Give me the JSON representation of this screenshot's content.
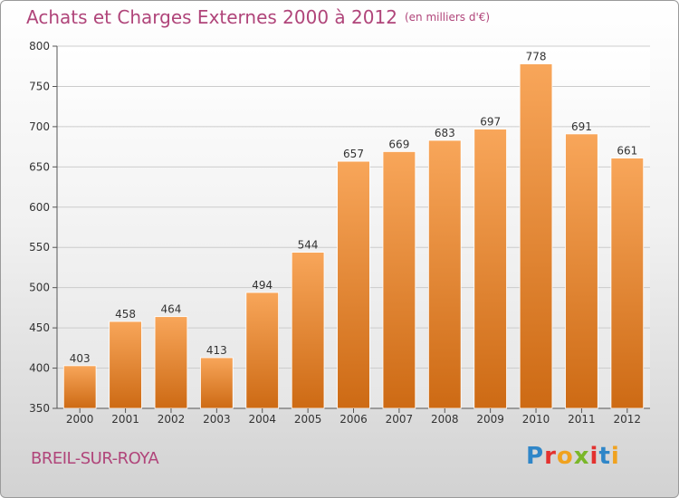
{
  "header": {
    "title": "Achats et Charges Externes 2000 à 2012",
    "unit": "(en milliers d'€)"
  },
  "footer": {
    "commune": "BREIL-SUR-ROYA",
    "logo": [
      "P",
      "r",
      "o",
      "x",
      "i",
      "t",
      "i"
    ]
  },
  "colors": {
    "bar_top": "#f8a65a",
    "bar_bottom": "#cd6a14",
    "title": "#b0457a",
    "grid": "#cccccc"
  },
  "chart_data": {
    "type": "bar",
    "categories": [
      "2000",
      "2001",
      "2002",
      "2003",
      "2004",
      "2005",
      "2006",
      "2007",
      "2008",
      "2009",
      "2010",
      "2011",
      "2012"
    ],
    "values": [
      403,
      458,
      464,
      413,
      494,
      544,
      657,
      669,
      683,
      697,
      778,
      691,
      661
    ],
    "data_labels": [
      "403",
      "458",
      "464",
      "413",
      "494",
      "544",
      "657",
      "669",
      "683",
      "697",
      "778",
      "691",
      "661"
    ],
    "title": "Achats et Charges Externes 2000 à 2012",
    "xlabel": "",
    "ylabel": "",
    "ylim": [
      350,
      800
    ],
    "yticks": [
      350,
      400,
      450,
      500,
      550,
      600,
      650,
      700,
      750,
      800
    ],
    "ytick_labels": [
      "350",
      "400",
      "450",
      "500",
      "550",
      "600",
      "650",
      "700",
      "750",
      "800"
    ],
    "grid": true,
    "legend": "none"
  }
}
